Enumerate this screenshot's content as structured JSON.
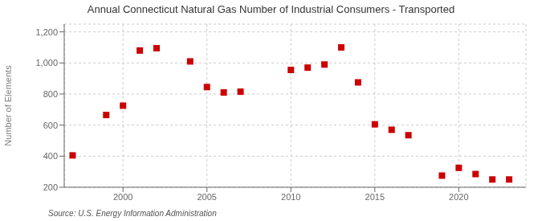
{
  "chart_data": {
    "type": "scatter",
    "title": "Annual Connecticut Natural Gas Number of Industrial Consumers - Transported",
    "ylabel": "Number of Elements",
    "annotations": [
      "Source: U.S. Energy Information Administration"
    ],
    "x": [
      1997,
      1999,
      2000,
      2001,
      2002,
      2004,
      2005,
      2006,
      2007,
      2010,
      2011,
      2012,
      2013,
      2014,
      2015,
      2016,
      2017,
      2019,
      2020,
      2021,
      2022,
      2023
    ],
    "values": [
      405,
      665,
      725,
      1080,
      1095,
      1010,
      845,
      810,
      815,
      955,
      970,
      990,
      1100,
      875,
      605,
      570,
      535,
      275,
      325,
      285,
      250,
      250
    ],
    "color": "#cc0000",
    "marker": "square",
    "xlim": [
      1996.5,
      2024
    ],
    "ylim": [
      200,
      1250
    ],
    "xticks": [
      2000,
      2005,
      2010,
      2015,
      2020
    ],
    "yticks": [
      200,
      400,
      600,
      800,
      {
        "value": 1000,
        "label": "1,000"
      },
      {
        "value": 1200,
        "label": "1,200"
      }
    ],
    "grid": true
  }
}
